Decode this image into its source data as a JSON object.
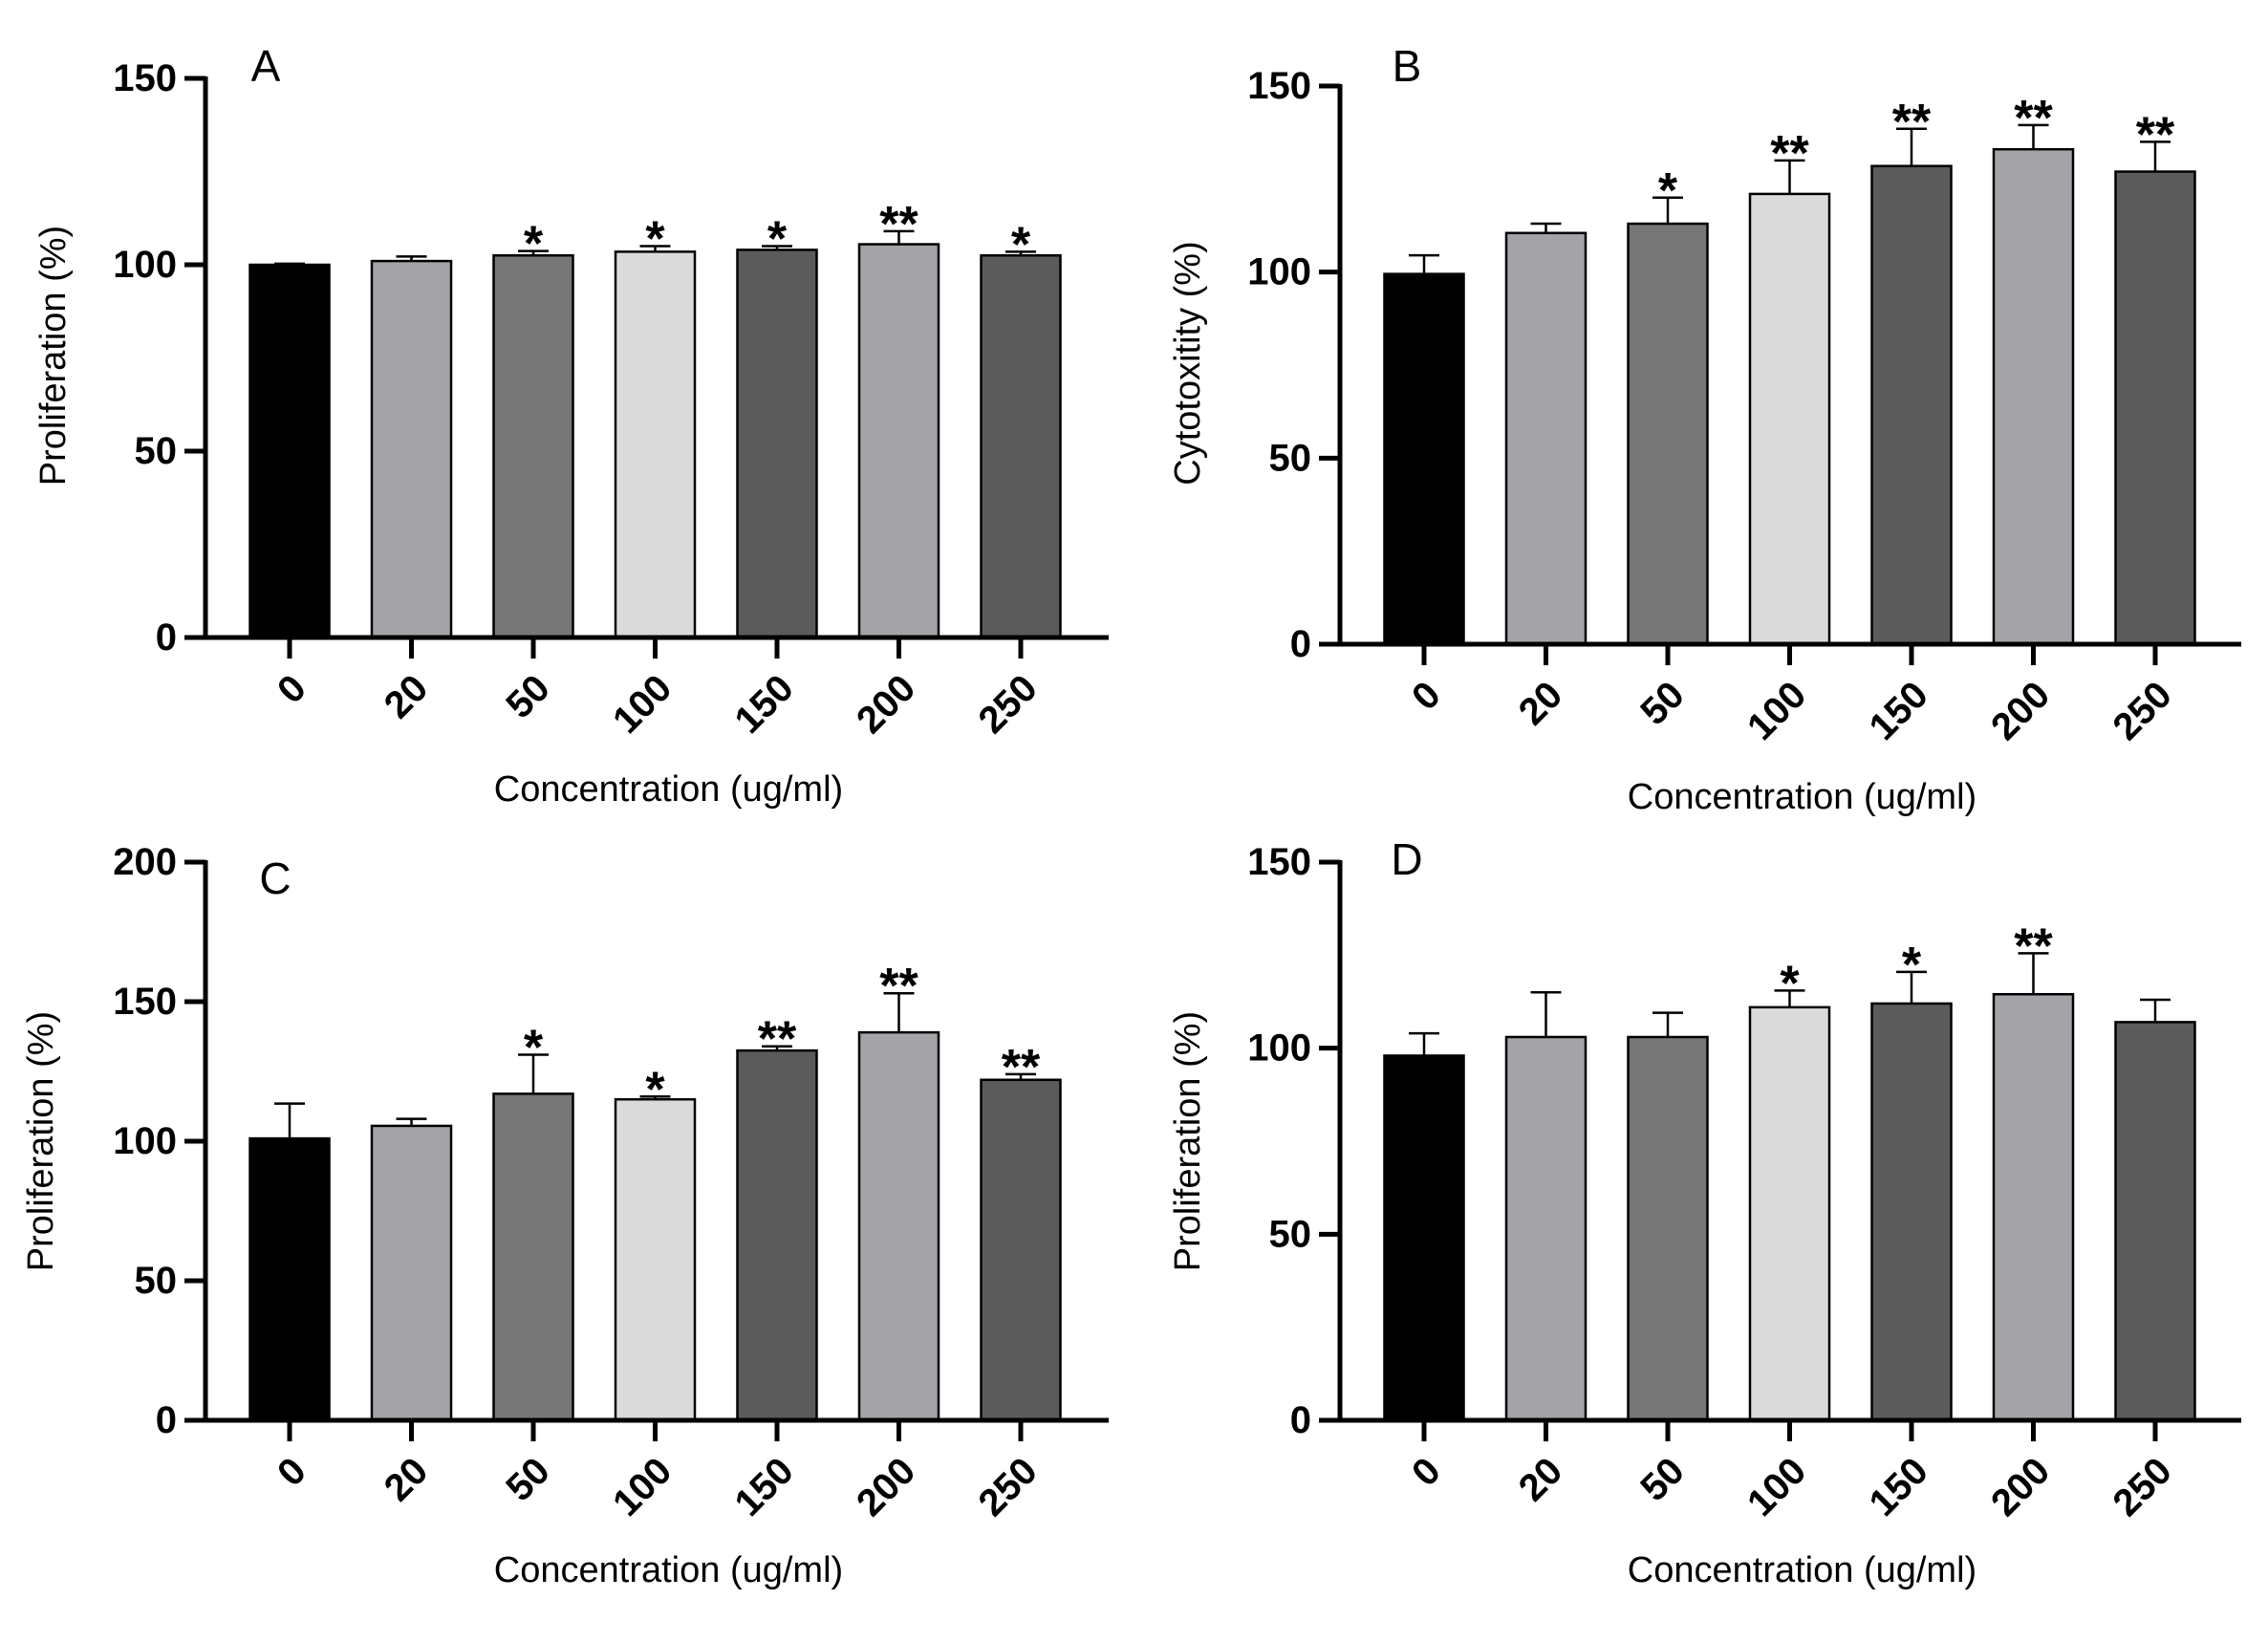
{
  "figure": {
    "bar_colors": [
      "#000000",
      "#a4a4a8",
      "#777777",
      "#dadada",
      "#5b5b5b",
      "#a4a4a8",
      "#5b5b5b"
    ],
    "axis_color": "#000000"
  },
  "chart_data": [
    {
      "panel": "A",
      "type": "bar",
      "title": "A",
      "xlabel": "Concentration (ug/ml)",
      "ylabel": "Proliferation (%)",
      "ylim": [
        0,
        150
      ],
      "yticks": [
        0,
        50,
        100,
        150
      ],
      "categories": [
        "0",
        "20",
        "50",
        "100",
        "150",
        "200",
        "250"
      ],
      "values": [
        100,
        101,
        102.5,
        103.5,
        104,
        105.5,
        102.5
      ],
      "errors": [
        0.3,
        1.2,
        1.2,
        1.5,
        1,
        3.5,
        1
      ],
      "significance": [
        "",
        "",
        "*",
        "*",
        "*",
        "**",
        "*"
      ]
    },
    {
      "panel": "B",
      "type": "bar",
      "title": "B",
      "xlabel": "Concentration (ug/ml)",
      "ylabel": "Cytotoxitity (%)",
      "ylim": [
        0,
        150
      ],
      "yticks": [
        0,
        50,
        100,
        150
      ],
      "categories": [
        "0",
        "20",
        "50",
        "100",
        "150",
        "200",
        "250"
      ],
      "values": [
        99.5,
        110.5,
        113,
        121,
        128.5,
        133,
        127
      ],
      "errors": [
        5,
        2.5,
        7,
        9,
        10,
        6.5,
        8
      ],
      "significance": [
        "",
        "",
        "*",
        "**",
        "**",
        "**",
        "**"
      ]
    },
    {
      "panel": "C",
      "type": "bar",
      "title": "C",
      "xlabel": "Concentration (ug/ml)",
      "ylabel": "Proliferation (%)",
      "ylim": [
        0,
        200
      ],
      "yticks": [
        0,
        50,
        100,
        150,
        200
      ],
      "categories": [
        "0",
        "20",
        "50",
        "100",
        "150",
        "200",
        "250"
      ],
      "values": [
        101,
        105.5,
        117,
        115,
        132.5,
        139,
        122
      ],
      "errors": [
        12.5,
        2.5,
        14,
        1,
        1.5,
        14,
        2
      ],
      "significance": [
        "",
        "",
        "*",
        "*",
        "**",
        "**",
        "**"
      ]
    },
    {
      "panel": "D",
      "type": "bar",
      "title": "D",
      "xlabel": "Concentration (ug/ml)",
      "ylabel": "Proliferation (%)",
      "ylim": [
        0,
        150
      ],
      "yticks": [
        0,
        50,
        100,
        150
      ],
      "categories": [
        "0",
        "20",
        "50",
        "100",
        "150",
        "200",
        "250"
      ],
      "values": [
        98,
        103,
        103,
        111,
        112,
        114.5,
        107
      ],
      "errors": [
        6,
        12,
        6.5,
        4.5,
        8.5,
        11,
        6
      ],
      "significance": [
        "",
        "",
        "",
        "*",
        "*",
        "**",
        ""
      ]
    }
  ]
}
